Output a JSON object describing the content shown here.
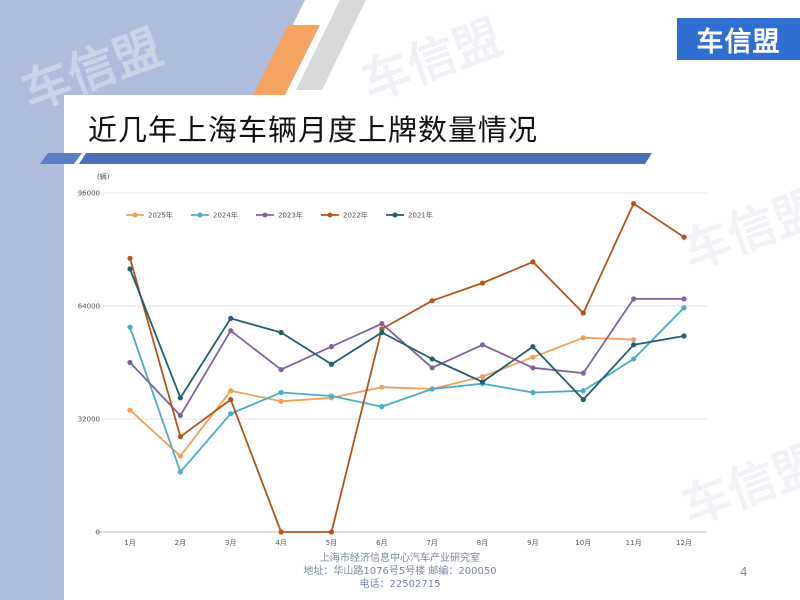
{
  "slide": {
    "title": "近几年上海车辆月度上牌数量情况",
    "logo_text": "车信盟",
    "watermark": "车信盟",
    "page_number": "4",
    "footer": {
      "line1": "上海市经济信息中心汽车产业研究室",
      "line2": "地址：华山路1076号5号楼    邮编：200050",
      "line3": "电话：22502715"
    },
    "colors": {
      "left_band": "#aebddb",
      "accent_orange": "#f4a460",
      "title_bar_blue": "#4a6fb5"
    }
  },
  "chart_data": {
    "type": "line",
    "unit_label": "(辆)",
    "categories": [
      "1月",
      "2月",
      "3月",
      "4月",
      "5月",
      "6月",
      "7月",
      "8月",
      "9月",
      "10月",
      "11月",
      "12月"
    ],
    "ylim": [
      0,
      96000
    ],
    "yticks": [
      "0",
      "32000",
      "64000",
      "96000"
    ],
    "grid": true,
    "legend_position": "top-left",
    "series": [
      {
        "name": "2025年",
        "color": "#f1a05a",
        "values": [
          34500,
          21500,
          40000,
          37000,
          38000,
          41000,
          40500,
          44000,
          49500,
          55000,
          54500,
          null
        ]
      },
      {
        "name": "2024年",
        "color": "#4bacc6",
        "values": [
          58000,
          17000,
          33500,
          39500,
          38500,
          35500,
          40500,
          42000,
          39500,
          40000,
          49000,
          63500
        ]
      },
      {
        "name": "2023年",
        "color": "#8064a2",
        "values": [
          48000,
          33000,
          57000,
          46000,
          52500,
          59000,
          46500,
          53000,
          46500,
          45000,
          66000,
          66000
        ]
      },
      {
        "name": "2022年",
        "color": "#b5541a",
        "values": [
          77500,
          27000,
          37500,
          0,
          0,
          57500,
          65500,
          70500,
          76500,
          62000,
          93000,
          83500
        ]
      },
      {
        "name": "2021年",
        "color": "#215f6f",
        "values": [
          74500,
          38000,
          60500,
          56500,
          47500,
          56500,
          49000,
          42500,
          52500,
          37500,
          53000,
          55500
        ]
      }
    ]
  }
}
